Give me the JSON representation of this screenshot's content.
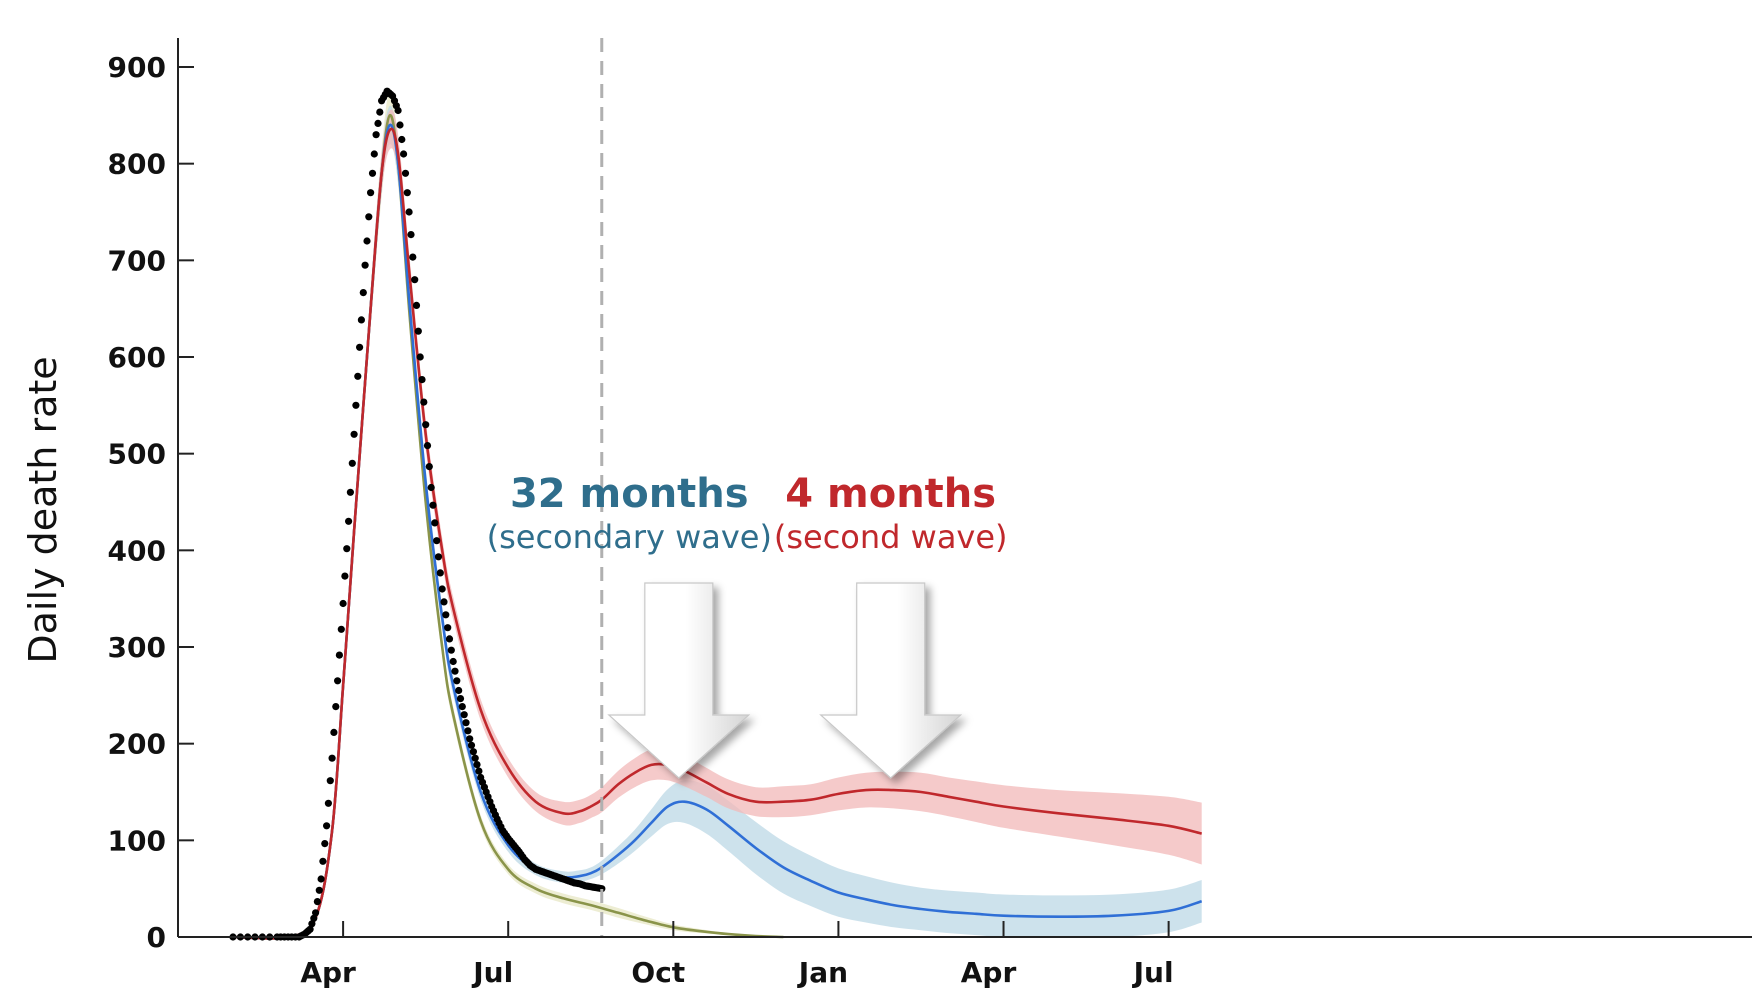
{
  "chart_data": {
    "type": "line",
    "ylabel": "Daily death rate",
    "xlabel": "",
    "ylim": [
      0,
      930
    ],
    "xlim": [
      0,
      28.6
    ],
    "yticks": [
      0,
      100,
      200,
      300,
      400,
      500,
      600,
      700,
      800,
      900
    ],
    "xticks": [
      {
        "x": 3,
        "label": "Apr"
      },
      {
        "x": 6,
        "label": "Jul"
      },
      {
        "x": 9,
        "label": "Oct"
      },
      {
        "x": 12,
        "label": "Jan"
      },
      {
        "x": 15,
        "label": "Apr"
      },
      {
        "x": 18,
        "label": "Jul"
      }
    ],
    "cutoff_x": 7.7,
    "grid": false,
    "colors": {
      "observed": "#000000",
      "red": "#c0282c",
      "red_band": "#f2b8b8",
      "blue": "#2f6fd6",
      "blue_band": "#bcd8e6",
      "olive": "#8a944a",
      "olive_band": "#e9e8c8",
      "cutoff": "#b0b0b0",
      "ann_blue": "#2f6e8c",
      "ann_red": "#c0282c"
    },
    "observed": {
      "x": [
        1.0,
        1.4,
        1.8,
        2.0,
        2.2,
        2.3,
        2.4,
        2.5,
        2.6,
        2.7,
        2.8,
        2.9,
        3.0,
        3.1,
        3.2,
        3.3,
        3.4,
        3.5,
        3.6,
        3.7,
        3.8,
        3.9,
        4.0,
        4.1,
        4.2,
        4.3,
        4.4,
        4.5,
        4.6,
        4.7,
        4.8,
        4.9,
        5.0,
        5.1,
        5.2,
        5.3,
        5.4,
        5.5,
        5.6,
        5.7,
        5.8,
        5.9,
        6.0,
        6.1,
        6.2,
        6.3,
        6.4,
        6.5,
        6.6,
        6.7,
        6.8,
        6.9,
        7.0,
        7.1,
        7.2,
        7.3,
        7.4,
        7.5,
        7.6,
        7.7
      ],
      "y": [
        0,
        0,
        0,
        0,
        0,
        3,
        8,
        25,
        60,
        115,
        185,
        265,
        345,
        430,
        520,
        610,
        695,
        770,
        830,
        865,
        875,
        870,
        855,
        810,
        750,
        680,
        600,
        530,
        465,
        410,
        360,
        320,
        285,
        255,
        230,
        205,
        185,
        165,
        150,
        135,
        122,
        110,
        102,
        95,
        88,
        80,
        74,
        70,
        68,
        66,
        64,
        62,
        60,
        58,
        56,
        55,
        53,
        52,
        51,
        50
      ]
    },
    "series": [
      {
        "name": "red",
        "x": [
          1.0,
          2.0,
          2.5,
          2.8,
          3.0,
          3.2,
          3.5,
          3.7,
          3.85,
          4.0,
          4.2,
          4.5,
          4.8,
          5.0,
          5.5,
          6.0,
          6.5,
          7.0,
          7.3,
          7.5,
          7.7,
          8.0,
          8.3,
          8.6,
          8.9,
          9.2,
          9.6,
          10.0,
          10.5,
          11.0,
          11.5,
          12.0,
          12.5,
          13.0,
          13.5,
          14.0,
          14.5,
          15.0,
          16.0,
          17.0,
          18.0,
          18.6
        ],
        "y": [
          0,
          0,
          20,
          110,
          260,
          420,
          650,
          790,
          835,
          810,
          690,
          520,
          400,
          340,
          235,
          175,
          140,
          128,
          130,
          135,
          142,
          158,
          170,
          178,
          178,
          172,
          160,
          148,
          140,
          140,
          142,
          148,
          152,
          152,
          150,
          145,
          140,
          135,
          128,
          122,
          115,
          107
        ],
        "band_half": [
          0,
          0,
          3,
          6,
          10,
          14,
          18,
          20,
          20,
          20,
          18,
          15,
          13,
          12,
          11,
          10,
          10,
          12,
          12,
          12,
          13,
          14,
          15,
          16,
          16,
          16,
          15,
          15,
          15,
          16,
          16,
          17,
          18,
          19,
          20,
          20,
          21,
          22,
          24,
          27,
          30,
          32
        ]
      },
      {
        "name": "blue",
        "x": [
          1.0,
          2.0,
          2.5,
          2.8,
          3.0,
          3.2,
          3.5,
          3.7,
          3.85,
          4.0,
          4.2,
          4.5,
          4.8,
          5.0,
          5.5,
          6.0,
          6.5,
          7.0,
          7.3,
          7.5,
          7.7,
          8.0,
          8.3,
          8.6,
          8.9,
          9.2,
          9.6,
          10.0,
          10.5,
          11.0,
          11.5,
          12.0,
          12.5,
          13.0,
          13.5,
          14.0,
          14.5,
          15.0,
          16.0,
          17.0,
          18.0,
          18.6
        ],
        "y": [
          0,
          0,
          20,
          110,
          260,
          420,
          650,
          790,
          840,
          800,
          660,
          470,
          330,
          260,
          150,
          95,
          70,
          62,
          63,
          66,
          72,
          85,
          100,
          118,
          135,
          140,
          132,
          115,
          92,
          72,
          58,
          46,
          39,
          33,
          29,
          26,
          24,
          22,
          21,
          22,
          27,
          37
        ],
        "band_half": [
          0,
          0,
          3,
          6,
          10,
          14,
          18,
          20,
          20,
          20,
          18,
          15,
          12,
          10,
          8,
          7,
          6,
          6,
          6,
          6,
          7,
          9,
          11,
          14,
          18,
          22,
          25,
          26,
          27,
          27,
          26,
          25,
          24,
          23,
          22,
          22,
          22,
          22,
          22,
          22,
          22,
          22
        ]
      },
      {
        "name": "olive",
        "x": [
          1.0,
          2.0,
          2.5,
          2.8,
          3.0,
          3.2,
          3.5,
          3.7,
          3.85,
          4.0,
          4.2,
          4.5,
          4.8,
          5.0,
          5.5,
          6.0,
          6.5,
          7.0,
          7.5,
          8.0,
          8.5,
          9.0,
          9.5,
          10.0,
          10.5,
          11.0
        ],
        "y": [
          0,
          0,
          20,
          110,
          260,
          420,
          650,
          790,
          850,
          800,
          650,
          450,
          300,
          230,
          120,
          70,
          50,
          40,
          33,
          25,
          17,
          10,
          6,
          3,
          1,
          0
        ],
        "band_half": [
          0,
          0,
          3,
          6,
          10,
          14,
          20,
          25,
          25,
          22,
          18,
          14,
          10,
          8,
          6,
          5,
          5,
          5,
          5,
          5,
          4,
          3,
          2,
          1,
          1,
          0
        ]
      }
    ],
    "annotations": [
      {
        "line1": "32 months",
        "line2": "(secondary wave)",
        "color": "ann_blue",
        "x": 8.2,
        "arrow_x": 9.1
      },
      {
        "line1": "4 months",
        "line2": "(second wave)",
        "color": "ann_red",
        "x": 12.95,
        "arrow_x": 12.95
      }
    ]
  }
}
